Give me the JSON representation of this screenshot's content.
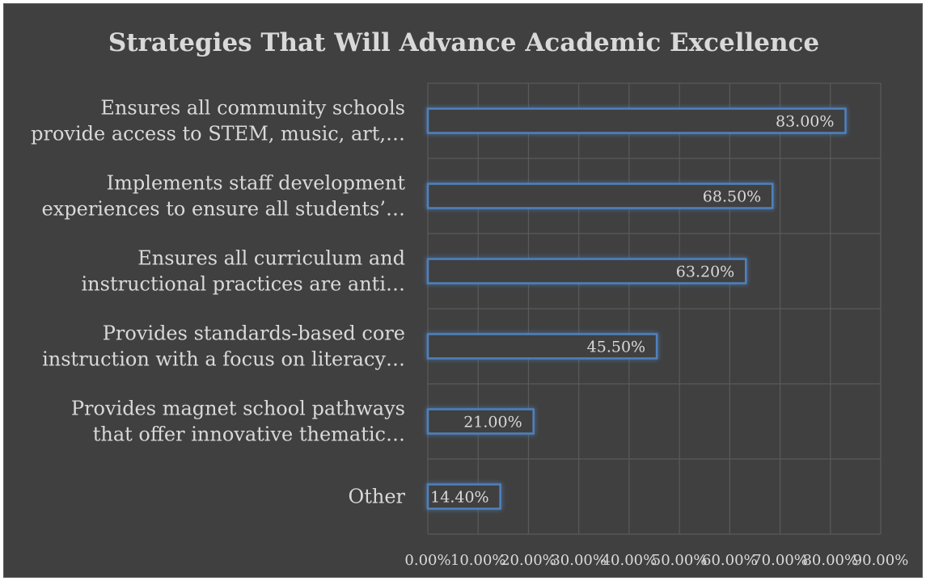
{
  "chart_data": {
    "type": "bar",
    "orientation": "horizontal",
    "title": "Strategies That Will Advance Academic Excellence",
    "categories": [
      [
        "Ensures all community schools",
        "provide access to STEM, music, art,…"
      ],
      [
        "Implements staff development",
        "experiences to ensure all students’…"
      ],
      [
        "Ensures all curriculum and",
        "instructional practices are anti…"
      ],
      [
        "Provides standards-based core",
        "instruction with a focus on literacy…"
      ],
      [
        "Provides magnet school pathways",
        "that offer innovative thematic…"
      ],
      [
        "Other"
      ]
    ],
    "values": [
      83.0,
      68.5,
      63.2,
      45.5,
      21.0,
      14.4
    ],
    "data_labels": [
      "83.00%",
      "68.50%",
      "63.20%",
      "45.50%",
      "21.00%",
      "14.40%"
    ],
    "xlim": [
      0,
      90
    ],
    "x_ticks": [
      "0.00%",
      "10.00%",
      "20.00%",
      "30.00%",
      "40.00%",
      "50.00%",
      "60.00%",
      "70.00%",
      "80.00%",
      "90.00%"
    ],
    "grid": true,
    "colors": {
      "background": "#404040",
      "bar_outline": "#4f81bd",
      "bar_glow": "#4f81bd",
      "text": "#d9d9d9",
      "grid": "#5a5a5a"
    }
  }
}
